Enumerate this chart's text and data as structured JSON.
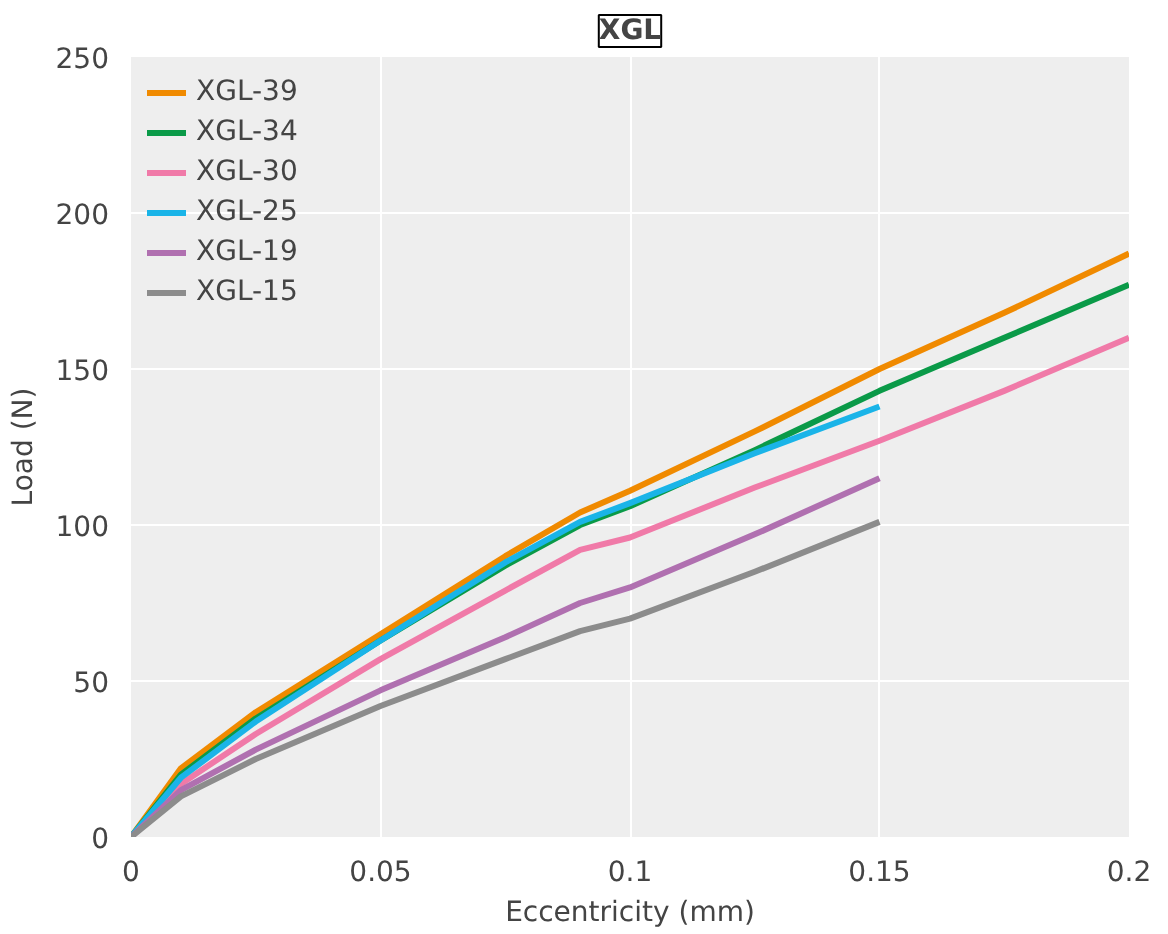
{
  "chart_data": {
    "type": "line",
    "title": "XGL",
    "xlabel": "Eccentricity (mm)",
    "ylabel": "Load (N)",
    "x": [
      0,
      0.01,
      0.025,
      0.05,
      0.075,
      0.09,
      0.1,
      0.125,
      0.15,
      0.175,
      0.2
    ],
    "xlim": [
      0,
      0.2
    ],
    "xticks": [
      0,
      0.05,
      0.1,
      0.15,
      0.2
    ],
    "ylim": [
      0,
      250
    ],
    "yticks": [
      0,
      50,
      100,
      150,
      200,
      250
    ],
    "grid": true,
    "legend": "top left",
    "line_style": "solid",
    "series": [
      {
        "name": "XGL-39",
        "color": "#f08a00",
        "values": [
          0,
          22,
          40,
          65,
          90,
          104,
          111,
          130,
          150,
          168,
          187
        ]
      },
      {
        "name": "XGL-34",
        "color": "#0a9a48",
        "values": [
          0,
          20,
          38,
          63,
          87,
          100,
          106,
          124,
          143,
          160,
          177
        ]
      },
      {
        "name": "XGL-30",
        "color": "#f07aa8",
        "values": [
          0,
          17,
          33,
          57,
          79,
          92,
          96,
          112,
          127,
          143,
          160
        ]
      },
      {
        "name": "XGL-25",
        "color": "#1ab4e8",
        "values": [
          0,
          19,
          37,
          63,
          88,
          101,
          107,
          123,
          138,
          null,
          null
        ]
      },
      {
        "name": "XGL-19",
        "color": "#b070b0",
        "values": [
          0,
          15,
          28,
          47,
          64,
          75,
          80,
          97,
          115,
          null,
          null
        ]
      },
      {
        "name": "XGL-15",
        "color": "#8c8c8c",
        "values": [
          0,
          13,
          25,
          42,
          57,
          66,
          70,
          85,
          101,
          null,
          null
        ]
      }
    ]
  }
}
